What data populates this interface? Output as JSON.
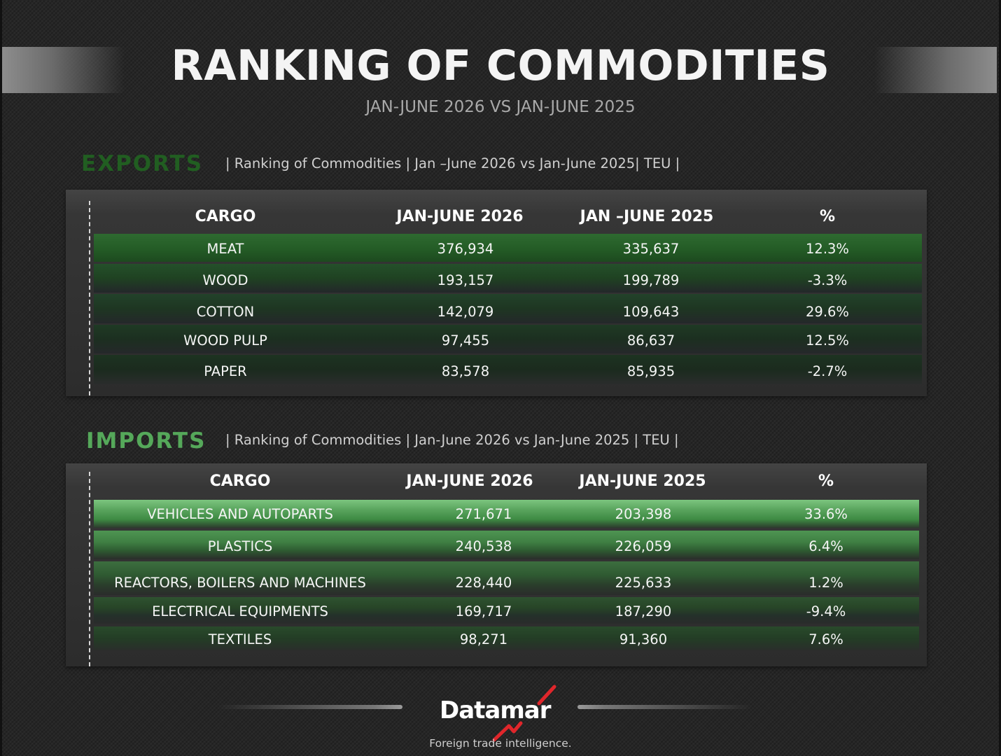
{
  "header": {
    "title": "RANKING OF COMMODITIES",
    "subtitle": "JAN-JUNE  2026 VS JAN-JUNE 2025"
  },
  "colors": {
    "exports_label": "#215e21",
    "imports_label": "#55a85a",
    "background": "#262626"
  },
  "chart_data": [
    {
      "type": "table",
      "section": "EXPORTS",
      "description": "| Ranking of Commodities | Jan –June  2026 vs Jan-June 2025| TEU |",
      "columns": [
        "CARGO",
        "JAN-JUNE 2026",
        "JAN –JUNE 2025",
        "%"
      ],
      "rows": [
        {
          "cargo": "MEAT",
          "y2026": "376,934",
          "y2025": "335,637",
          "pct": "12.3%"
        },
        {
          "cargo": "WOOD",
          "y2026": "193,157",
          "y2025": "199,789",
          "pct": "-3.3%"
        },
        {
          "cargo": "COTTON",
          "y2026": "142,079",
          "y2025": "109,643",
          "pct": "29.6%"
        },
        {
          "cargo": "WOOD PULP",
          "y2026": "97,455",
          "y2025": "86,637",
          "pct": "12.5%"
        },
        {
          "cargo": "PAPER",
          "y2026": "83,578",
          "y2025": "85,935",
          "pct": "-2.7%"
        }
      ]
    },
    {
      "type": "table",
      "section": "IMPORTS",
      "description": "| Ranking of Commodities | Jan-June 2026 vs Jan-June 2025  | TEU |",
      "columns": [
        "CARGO",
        "JAN-JUNE 2026",
        "JAN-JUNE 2025",
        "%"
      ],
      "rows": [
        {
          "cargo": "VEHICLES AND AUTOPARTS",
          "y2026": "271,671",
          "y2025": "203,398",
          "pct": "33.6%"
        },
        {
          "cargo": "PLASTICS",
          "y2026": "240,538",
          "y2025": "226,059",
          "pct": "6.4%"
        },
        {
          "cargo": "REACTORS, BOILERS AND MACHINES",
          "y2026": "228,440",
          "y2025": "225,633",
          "pct": "1.2%"
        },
        {
          "cargo": "ELECTRICAL EQUIPMENTS",
          "y2026": "169,717",
          "y2025": "187,290",
          "pct": "-9.4%"
        },
        {
          "cargo": "TEXTILES",
          "y2026": "98,271",
          "y2025": "91,360",
          "pct": "7.6%"
        }
      ]
    }
  ],
  "footer": {
    "logo_text": "Datamar",
    "tagline": "Foreign trade intelligence."
  }
}
